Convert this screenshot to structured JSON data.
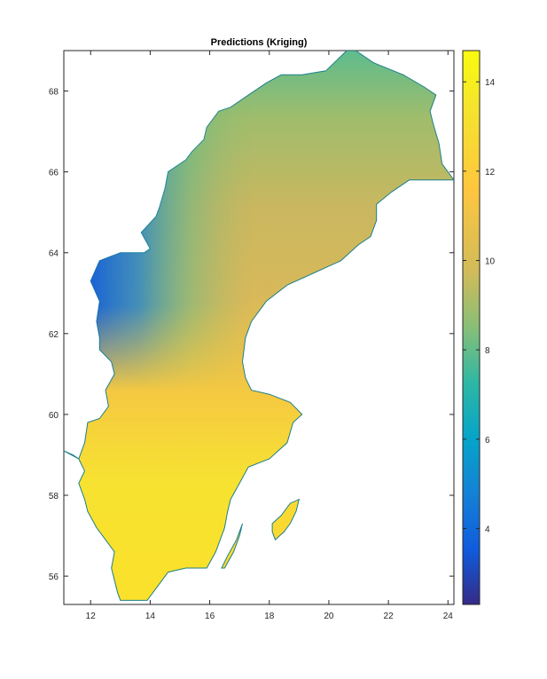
{
  "chart_data": {
    "type": "heatmap",
    "title": "Predictions (Kriging)",
    "xlabel": "",
    "ylabel": "",
    "xlim": [
      11.1,
      24.2
    ],
    "ylim": [
      55.3,
      69.0
    ],
    "x_ticks": [
      12,
      14,
      16,
      18,
      20,
      22,
      24
    ],
    "y_ticks": [
      56,
      58,
      60,
      62,
      64,
      66,
      68
    ],
    "x_tick_labels": [
      "12",
      "14",
      "16",
      "18",
      "20",
      "22",
      "24"
    ],
    "y_tick_labels": [
      "56",
      "58",
      "60",
      "62",
      "64",
      "66",
      "68"
    ],
    "colorbar": {
      "range": [
        2.3,
        14.7
      ],
      "ticks": [
        4,
        6,
        8,
        10,
        12,
        14
      ],
      "tick_labels": [
        "4",
        "6",
        "8",
        "10",
        "12",
        "14"
      ],
      "colormap": "parula"
    },
    "region": "Sweden",
    "mainland_outline": [
      [
        11.1,
        59.1
      ],
      [
        11.4,
        59.0
      ],
      [
        11.6,
        58.9
      ],
      [
        11.8,
        58.6
      ],
      [
        11.6,
        58.3
      ],
      [
        11.8,
        57.9
      ],
      [
        11.9,
        57.6
      ],
      [
        12.2,
        57.2
      ],
      [
        12.5,
        56.9
      ],
      [
        12.8,
        56.6
      ],
      [
        12.7,
        56.2
      ],
      [
        12.9,
        55.6
      ],
      [
        13.0,
        55.4
      ],
      [
        13.9,
        55.4
      ],
      [
        14.2,
        55.7
      ],
      [
        14.6,
        56.1
      ],
      [
        15.2,
        56.2
      ],
      [
        15.9,
        56.2
      ],
      [
        16.2,
        56.6
      ],
      [
        16.5,
        57.2
      ],
      [
        16.6,
        57.6
      ],
      [
        16.7,
        57.9
      ],
      [
        17.0,
        58.3
      ],
      [
        17.3,
        58.7
      ],
      [
        18.0,
        58.9
      ],
      [
        18.6,
        59.3
      ],
      [
        18.8,
        59.8
      ],
      [
        19.1,
        60.0
      ],
      [
        18.7,
        60.3
      ],
      [
        18.0,
        60.5
      ],
      [
        17.4,
        60.6
      ],
      [
        17.2,
        60.9
      ],
      [
        17.1,
        61.3
      ],
      [
        17.2,
        61.9
      ],
      [
        17.4,
        62.3
      ],
      [
        17.6,
        62.5
      ],
      [
        17.9,
        62.8
      ],
      [
        18.6,
        63.2
      ],
      [
        19.5,
        63.5
      ],
      [
        20.4,
        63.8
      ],
      [
        21.0,
        64.2
      ],
      [
        21.4,
        64.4
      ],
      [
        21.6,
        64.8
      ],
      [
        21.6,
        65.2
      ],
      [
        22.1,
        65.5
      ],
      [
        22.7,
        65.8
      ],
      [
        23.4,
        65.8
      ],
      [
        24.2,
        65.8
      ],
      [
        23.8,
        66.2
      ],
      [
        23.7,
        66.7
      ],
      [
        23.5,
        67.2
      ],
      [
        23.4,
        67.5
      ],
      [
        23.6,
        67.9
      ],
      [
        23.2,
        68.1
      ],
      [
        22.5,
        68.4
      ],
      [
        21.5,
        68.7
      ],
      [
        20.9,
        69.0
      ],
      [
        20.6,
        69.0
      ],
      [
        19.9,
        68.5
      ],
      [
        19.1,
        68.4
      ],
      [
        18.4,
        68.4
      ],
      [
        17.9,
        68.2
      ],
      [
        17.3,
        67.9
      ],
      [
        16.7,
        67.6
      ],
      [
        16.3,
        67.5
      ],
      [
        15.9,
        67.1
      ],
      [
        15.8,
        66.8
      ],
      [
        15.4,
        66.5
      ],
      [
        15.2,
        66.3
      ],
      [
        14.6,
        66.0
      ],
      [
        14.5,
        65.6
      ],
      [
        14.3,
        65.1
      ],
      [
        14.2,
        64.9
      ],
      [
        13.7,
        64.5
      ],
      [
        14.0,
        64.1
      ],
      [
        13.8,
        64.0
      ],
      [
        13.0,
        64.0
      ],
      [
        12.3,
        63.8
      ],
      [
        12.0,
        63.3
      ],
      [
        12.3,
        62.8
      ],
      [
        12.2,
        62.3
      ],
      [
        12.3,
        61.9
      ],
      [
        12.3,
        61.6
      ],
      [
        12.7,
        61.3
      ],
      [
        12.8,
        61.0
      ],
      [
        12.5,
        60.6
      ],
      [
        12.6,
        60.2
      ],
      [
        12.3,
        59.9
      ],
      [
        11.9,
        59.8
      ],
      [
        11.8,
        59.3
      ],
      [
        11.6,
        58.9
      ]
    ],
    "islands": [
      {
        "name": "Gotland",
        "outline": [
          [
            18.1,
            57.3
          ],
          [
            18.4,
            57.5
          ],
          [
            18.7,
            57.8
          ],
          [
            19.0,
            57.9
          ],
          [
            18.9,
            57.6
          ],
          [
            18.7,
            57.3
          ],
          [
            18.5,
            57.1
          ],
          [
            18.2,
            56.9
          ],
          [
            18.1,
            57.1
          ]
        ]
      },
      {
        "name": "Öland",
        "outline": [
          [
            16.4,
            56.2
          ],
          [
            16.6,
            56.5
          ],
          [
            16.9,
            56.9
          ],
          [
            17.1,
            57.3
          ],
          [
            17.0,
            57.0
          ],
          [
            16.8,
            56.6
          ],
          [
            16.5,
            56.2
          ]
        ]
      }
    ]
  }
}
